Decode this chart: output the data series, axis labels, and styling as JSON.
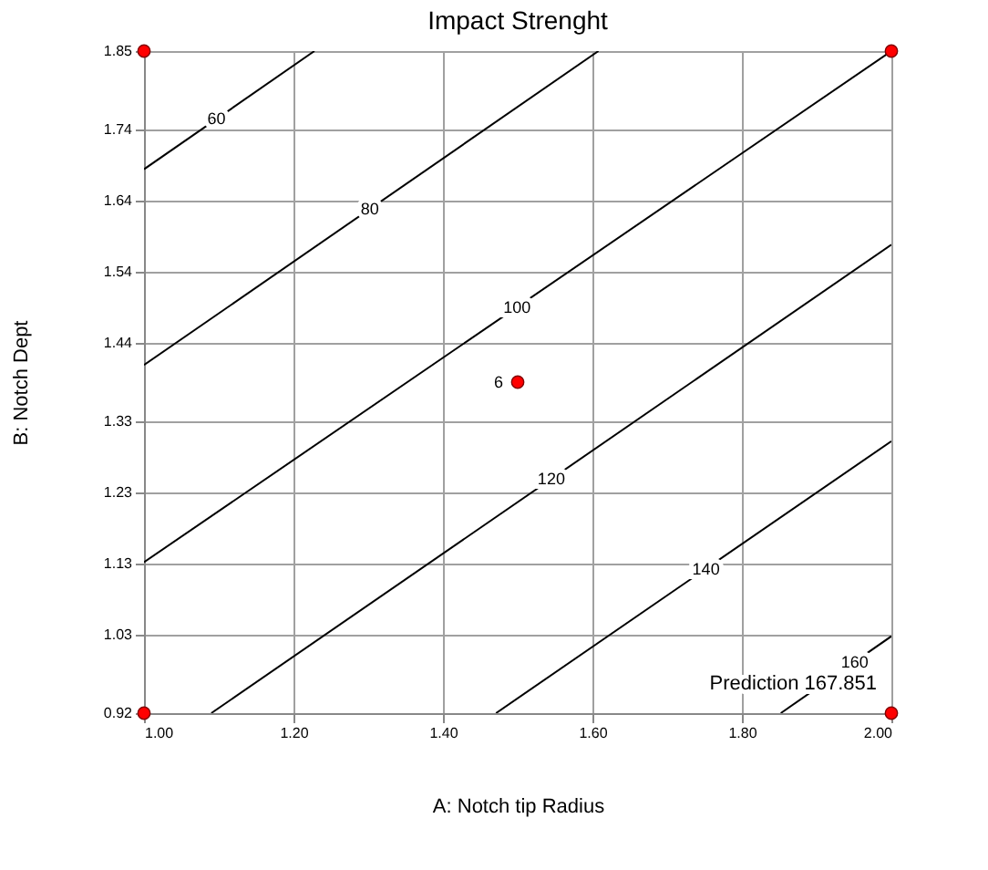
{
  "chart_data": {
    "type": "line",
    "title": "Impact Strenght",
    "xlabel": "A: Notch tip Radius",
    "ylabel": "B: Notch Dept",
    "xlim": [
      1.0,
      2.0
    ],
    "ylim": [
      0.92,
      1.85
    ],
    "xticks": [
      {
        "value": 1.0,
        "label": "1.00"
      },
      {
        "value": 1.2,
        "label": "1.20"
      },
      {
        "value": 1.4,
        "label": "1.40"
      },
      {
        "value": 1.6,
        "label": "1.60"
      },
      {
        "value": 1.8,
        "label": "1.80"
      },
      {
        "value": 2.0,
        "label": "2.00"
      }
    ],
    "yticks": [
      0.92,
      1.03,
      1.13,
      1.23,
      1.33,
      1.44,
      1.54,
      1.64,
      1.74,
      1.85
    ],
    "grid": true,
    "series": [
      {
        "color": "#000000",
        "x": [
          1.0,
          1.228
        ],
        "values": [
          1.684,
          1.85
        ]
      },
      {
        "color": "#000000",
        "x": [
          1.0,
          1.608
        ],
        "values": [
          1.409,
          1.85
        ]
      },
      {
        "color": "#000000",
        "x": [
          1.0,
          2.0
        ],
        "values": [
          1.132,
          1.85
        ]
      },
      {
        "color": "#000000",
        "x": [
          1.09,
          2.0
        ],
        "values": [
          0.92,
          1.578
        ]
      },
      {
        "color": "#000000",
        "x": [
          1.471,
          2.0
        ],
        "values": [
          0.92,
          1.302
        ]
      },
      {
        "color": "#000000",
        "x": [
          1.852,
          2.0
        ],
        "values": [
          0.92,
          1.028
        ]
      },
      {
        "type": "scatter",
        "color": "#ff0000",
        "x": [
          1.0,
          2.0,
          1.0,
          2.0,
          1.5
        ],
        "values": [
          1.85,
          1.85,
          0.92,
          0.92,
          1.385
        ]
      }
    ],
    "annotations": [
      {
        "text": "60",
        "x": 1.097,
        "y": 1.755
      },
      {
        "text": "80",
        "x": 1.302,
        "y": 1.628
      },
      {
        "text": "100",
        "x": 1.499,
        "y": 1.49
      },
      {
        "text": "120",
        "x": 1.545,
        "y": 1.249
      },
      {
        "text": "140",
        "x": 1.752,
        "y": 1.123
      },
      {
        "text": "160",
        "x": 1.951,
        "y": 0.992
      },
      {
        "text": "6",
        "x": 1.5,
        "y": 1.385
      },
      {
        "text": "Prediction 167.851",
        "x": 2.0,
        "y": 0.92
      }
    ]
  }
}
